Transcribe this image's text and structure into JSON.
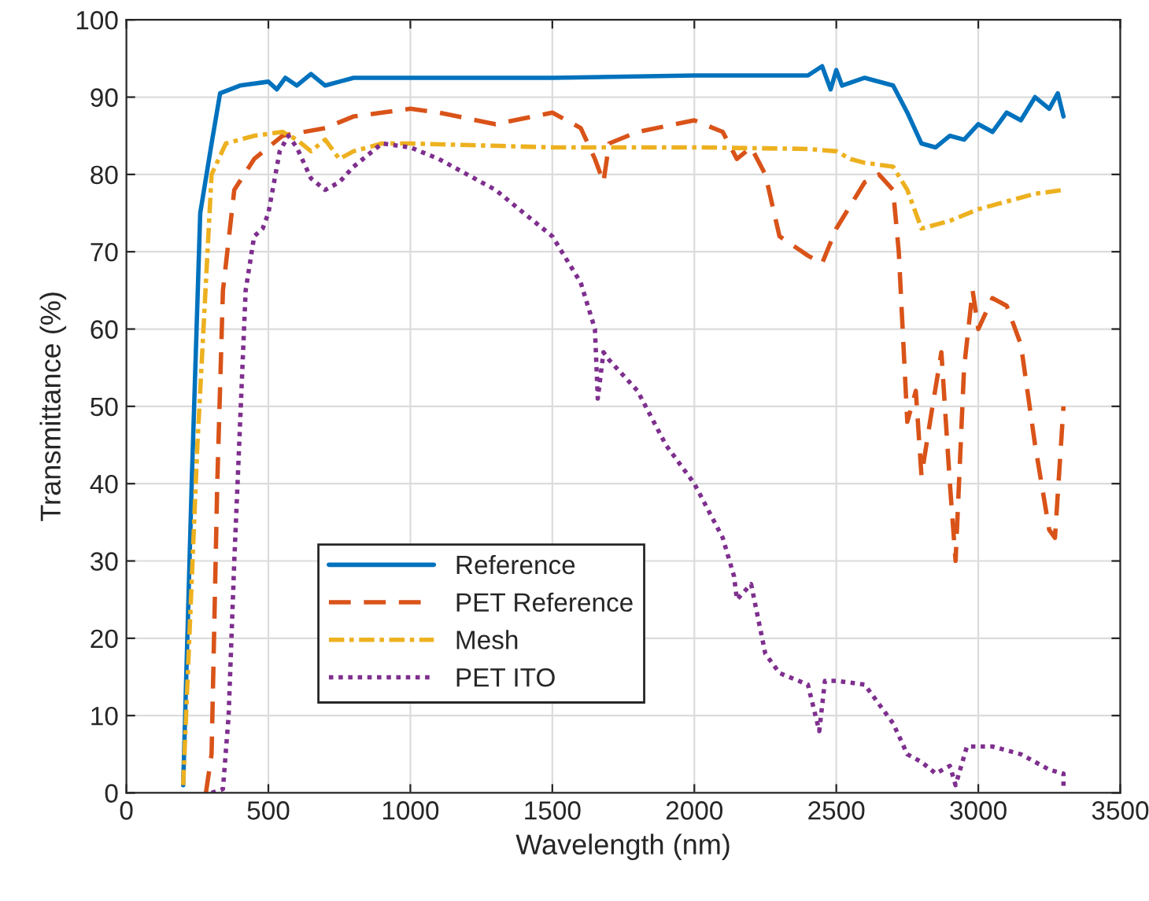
{
  "chart_data": {
    "type": "line",
    "xlabel": "Wavelength (nm)",
    "ylabel": "Transmittance (%)",
    "xlim": [
      0,
      3500
    ],
    "xticks": [
      0,
      500,
      1000,
      1500,
      2000,
      2500,
      3000,
      3500
    ],
    "ylim": [
      0,
      100
    ],
    "yticks": [
      0,
      10,
      20,
      30,
      40,
      50,
      60,
      70,
      80,
      90,
      100
    ],
    "grid": true,
    "legend": "bottom left",
    "marker": "none",
    "series": [
      {
        "name": "Reference",
        "color": "#0072bd",
        "line_style": "solid",
        "x": [
          200,
          230,
          260,
          300,
          330,
          400,
          500,
          530,
          560,
          600,
          650,
          700,
          750,
          800,
          1000,
          1500,
          2000,
          2400,
          2450,
          2480,
          2500,
          2520,
          2600,
          2700,
          2750,
          2800,
          2850,
          2900,
          2950,
          3000,
          3050,
          3100,
          3150,
          3200,
          3250,
          3280,
          3300
        ],
        "values": [
          1,
          40,
          75,
          84,
          90.5,
          91.5,
          92,
          91,
          92.5,
          91.5,
          93,
          91.5,
          92,
          92.5,
          92.5,
          92.5,
          92.8,
          92.8,
          94,
          91,
          93.5,
          91.5,
          92.5,
          91.5,
          88,
          84,
          83.5,
          85,
          84.5,
          86.5,
          85.5,
          88,
          87,
          90,
          88.5,
          90.5,
          87.5
        ]
      },
      {
        "name": "PET Reference",
        "color": "#d95319",
        "line_style": "dashed",
        "x": [
          280,
          300,
          320,
          340,
          380,
          450,
          550,
          700,
          800,
          900,
          1000,
          1100,
          1300,
          1500,
          1600,
          1650,
          1680,
          1700,
          1800,
          2000,
          2100,
          2150,
          2200,
          2250,
          2300,
          2400,
          2450,
          2500,
          2600,
          2650,
          2700,
          2720,
          2750,
          2780,
          2800,
          2830,
          2870,
          2900,
          2920,
          2950,
          2980,
          3000,
          3050,
          3100,
          3150,
          3200,
          3250,
          3270,
          3300
        ],
        "values": [
          0,
          5,
          40,
          65,
          78,
          82,
          85,
          86,
          87.5,
          88,
          88.5,
          88,
          86.5,
          88,
          86,
          82,
          79,
          84,
          85.5,
          87,
          85.5,
          82,
          83.5,
          80,
          72,
          69.5,
          68.5,
          73,
          79,
          80,
          78,
          70,
          48,
          52,
          41,
          48,
          57,
          40,
          30,
          55,
          65,
          60,
          64,
          63,
          58,
          45,
          34,
          33,
          50
        ]
      },
      {
        "name": "Mesh",
        "color": "#edb120",
        "line_style": "dashdot",
        "x": [
          200,
          250,
          300,
          350,
          450,
          550,
          600,
          650,
          700,
          750,
          800,
          900,
          1000,
          1500,
          2000,
          2400,
          2500,
          2550,
          2600,
          2700,
          2750,
          2800,
          2900,
          3000,
          3100,
          3200,
          3300
        ],
        "values": [
          1,
          45,
          80,
          84,
          85,
          85.5,
          84.5,
          83,
          84.5,
          82,
          83,
          84,
          84,
          83.5,
          83.5,
          83.3,
          83,
          82,
          81.5,
          81,
          78,
          73,
          74,
          75.5,
          76.5,
          77.5,
          78
        ]
      },
      {
        "name": "PET ITO",
        "color": "#7e2f8e",
        "line_style": "dotted",
        "x": [
          300,
          340,
          360,
          380,
          420,
          450,
          480,
          500,
          540,
          570,
          600,
          650,
          700,
          750,
          800,
          900,
          1000,
          1100,
          1200,
          1300,
          1400,
          1500,
          1600,
          1650,
          1660,
          1680,
          1700,
          1800,
          1900,
          2000,
          2100,
          2140,
          2150,
          2200,
          2250,
          2300,
          2400,
          2440,
          2460,
          2500,
          2600,
          2700,
          2750,
          2800,
          2850,
          2900,
          2920,
          2960,
          3050,
          3150,
          3250,
          3300,
          3300
        ],
        "values": [
          0,
          0.5,
          10,
          30,
          65,
          72,
          73,
          75,
          83,
          85,
          83.5,
          79.5,
          78,
          79,
          81,
          84,
          83.5,
          82,
          80,
          78,
          75,
          72,
          66,
          60,
          51,
          57,
          56,
          52,
          45,
          40,
          33,
          28,
          25,
          27,
          18,
          15.5,
          14,
          8,
          14.5,
          14.5,
          14,
          9,
          5,
          4,
          2.5,
          3.5,
          1,
          6,
          6,
          5,
          3,
          2.5,
          0.5
        ]
      }
    ]
  }
}
